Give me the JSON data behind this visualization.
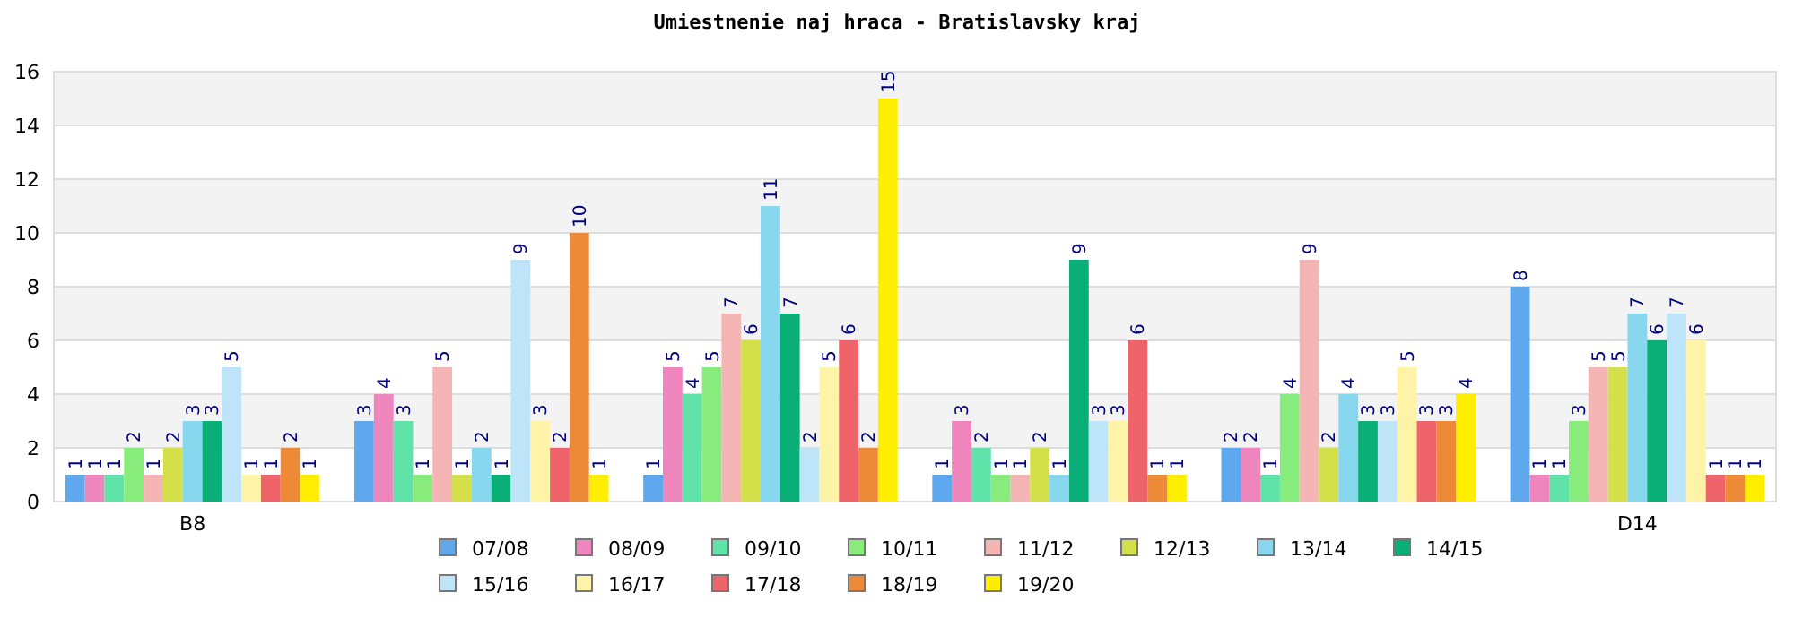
{
  "chart_data": {
    "type": "bar",
    "title": "Umiestnenie naj hraca - Bratislavsky kraj",
    "categories": [
      "B8",
      null,
      null,
      null,
      null,
      "D14"
    ],
    "ylim": [
      0,
      16
    ],
    "yticks": [
      0,
      2,
      4,
      6,
      8,
      10,
      12,
      14,
      16
    ],
    "grid": "y",
    "legend": "bottom",
    "data_labels": true,
    "series": [
      {
        "name": "07/08",
        "color": "#5fa8ee",
        "values": [
          1,
          3,
          1,
          1,
          2,
          8
        ]
      },
      {
        "name": "08/09",
        "color": "#ef85bd",
        "values": [
          1,
          4,
          5,
          3,
          2,
          1
        ]
      },
      {
        "name": "09/10",
        "color": "#5fe3a9",
        "values": [
          1,
          3,
          4,
          2,
          1,
          1
        ]
      },
      {
        "name": "10/11",
        "color": "#88ec7c",
        "values": [
          2,
          1,
          5,
          1,
          4,
          3
        ]
      },
      {
        "name": "11/12",
        "color": "#f5b5b5",
        "values": [
          1,
          5,
          7,
          1,
          9,
          5
        ]
      },
      {
        "name": "12/13",
        "color": "#d3e04a",
        "values": [
          2,
          1,
          6,
          2,
          2,
          5
        ]
      },
      {
        "name": "13/14",
        "color": "#87d7ef",
        "values": [
          3,
          2,
          11,
          1,
          4,
          7
        ]
      },
      {
        "name": "14/15",
        "color": "#0aaf78",
        "values": [
          3,
          1,
          7,
          9,
          3,
          6
        ]
      },
      {
        "name": "15/16",
        "color": "#bde4f8",
        "values": [
          5,
          9,
          2,
          3,
          3,
          7
        ]
      },
      {
        "name": "16/17",
        "color": "#fff3a8",
        "values": [
          1,
          3,
          5,
          3,
          5,
          6
        ]
      },
      {
        "name": "17/18",
        "color": "#ef636a",
        "values": [
          1,
          2,
          6,
          6,
          3,
          1
        ]
      },
      {
        "name": "18/19",
        "color": "#ed8a38",
        "values": [
          2,
          10,
          2,
          1,
          3,
          1
        ]
      },
      {
        "name": "19/20",
        "color": "#ffee00",
        "values": [
          1,
          1,
          15,
          1,
          4,
          1
        ]
      }
    ]
  }
}
